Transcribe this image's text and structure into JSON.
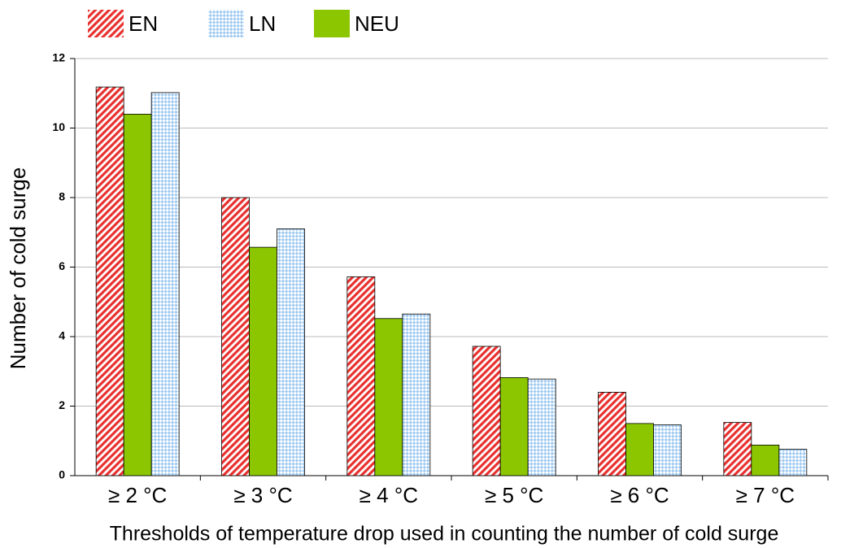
{
  "chart_data": {
    "type": "bar",
    "categories": [
      "≥ 2 °C",
      "≥ 3 °C",
      "≥ 4 °C",
      "≥ 5 °C",
      "≥ 6 °C",
      "≥ 7 °C"
    ],
    "series": [
      {
        "name": "EN",
        "color": "#e8312f",
        "pattern": "hatch",
        "values": [
          11.18,
          8.0,
          5.72,
          3.72,
          2.4,
          1.53
        ]
      },
      {
        "name": "NEU",
        "color": "#8cc600",
        "pattern": "solid",
        "values": [
          10.4,
          6.57,
          4.52,
          2.82,
          1.5,
          0.88
        ]
      },
      {
        "name": "LN",
        "color": "#9ec9f0",
        "pattern": "checker",
        "values": [
          11.02,
          7.1,
          4.65,
          2.78,
          1.46,
          0.76
        ]
      }
    ],
    "x_label": "Thresholds of temperature drop used in counting the number of cold surge",
    "y_label": "Number of cold surge",
    "ylim": [
      0,
      12
    ],
    "yticks": [
      0,
      2,
      4,
      6,
      8,
      10,
      12
    ],
    "grid": true,
    "legend": "top-left"
  }
}
